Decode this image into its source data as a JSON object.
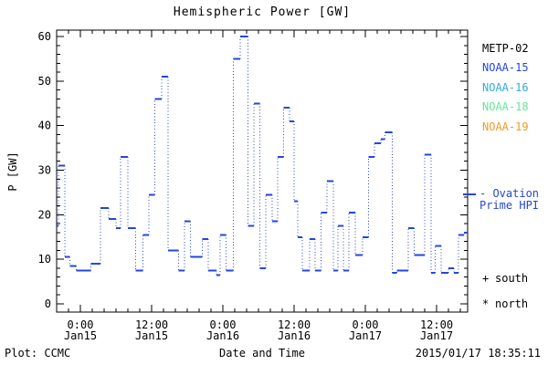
{
  "footer": {
    "left": "Plot: CCMC",
    "right": "2015/01/17 18:35:11"
  },
  "legend": {
    "satellites": [
      {
        "label": "METP-02",
        "color": "#000000"
      },
      {
        "label": "NOAA-15",
        "color": "#2547d8"
      },
      {
        "label": "NOAA-16",
        "color": "#33aadd"
      },
      {
        "label": "NOAA-18",
        "color": "#66e699"
      },
      {
        "label": "NOAA-19",
        "color": "#ef9c28"
      }
    ],
    "ovation": {
      "line1": "- Ovation",
      "line2": "Prime HPI",
      "color": "#2547d8"
    },
    "markers": [
      {
        "symbol": "+",
        "label": "south"
      },
      {
        "symbol": "*",
        "label": "north"
      }
    ]
  },
  "chart_data": {
    "type": "line",
    "subtype": "step-dashes-with-dotted-connectors",
    "title": "Hemispheric Power [GW]",
    "xlabel": "Date and Time",
    "ylabel": "P [GW]",
    "ylim": [
      0,
      61.4
    ],
    "grid": false,
    "y_major_ticks": [
      0,
      10,
      20,
      30,
      40,
      50,
      60
    ],
    "y_minor_step": 2,
    "x_axis_start": "2015-01-14 20:00",
    "x_axis_span_hours": 69.2,
    "x_minor_step_hours": 2,
    "x_major_ticks": [
      {
        "hours": 4,
        "label_time": "0:00",
        "label_date": "Jan15"
      },
      {
        "hours": 16,
        "label_time": "12:00",
        "label_date": "Jan15"
      },
      {
        "hours": 28,
        "label_time": "0:00",
        "label_date": "Jan16"
      },
      {
        "hours": 40,
        "label_time": "12:00",
        "label_date": "Jan16"
      },
      {
        "hours": 52,
        "label_time": "0:00",
        "label_date": "Jan17"
      },
      {
        "hours": 64,
        "label_time": "12:00",
        "label_date": "Jan17"
      }
    ],
    "series": [
      {
        "name": "NOAA-15 Ovation Prime HPI",
        "color": "#2547d8",
        "units": "GW",
        "steps_t0_t1_value": [
          [
            0.0,
            0.3,
            17.5
          ],
          [
            0.3,
            1.4,
            31
          ],
          [
            1.4,
            2.2,
            10.5
          ],
          [
            2.2,
            3.3,
            8.5
          ],
          [
            3.3,
            5.8,
            7.5
          ],
          [
            5.8,
            7.4,
            9
          ],
          [
            7.4,
            8.8,
            21.5
          ],
          [
            8.8,
            10.0,
            19
          ],
          [
            10.0,
            10.8,
            17
          ],
          [
            10.8,
            12.0,
            33
          ],
          [
            12.0,
            13.3,
            17
          ],
          [
            13.3,
            14.5,
            7.5
          ],
          [
            14.5,
            15.5,
            15.5
          ],
          [
            15.5,
            16.5,
            24.5
          ],
          [
            16.5,
            17.7,
            46
          ],
          [
            17.7,
            18.8,
            51
          ],
          [
            18.8,
            20.5,
            12
          ],
          [
            20.5,
            21.5,
            7.5
          ],
          [
            21.5,
            22.5,
            18.5
          ],
          [
            22.5,
            24.5,
            10.5
          ],
          [
            24.5,
            25.5,
            14.5
          ],
          [
            25.5,
            26.9,
            7.5
          ],
          [
            26.9,
            27.5,
            6.5
          ],
          [
            27.5,
            28.5,
            15.5
          ],
          [
            28.5,
            29.8,
            7.5
          ],
          [
            29.8,
            30.9,
            55
          ],
          [
            30.9,
            32.2,
            60
          ],
          [
            32.2,
            33.2,
            17.5
          ],
          [
            33.2,
            34.2,
            45
          ],
          [
            34.2,
            35.2,
            8
          ],
          [
            35.2,
            36.3,
            24.5
          ],
          [
            36.3,
            37.2,
            18.5
          ],
          [
            37.2,
            38.2,
            33
          ],
          [
            38.2,
            39.2,
            44
          ],
          [
            39.2,
            40.0,
            41
          ],
          [
            40.0,
            40.6,
            23
          ],
          [
            40.6,
            41.4,
            15
          ],
          [
            41.4,
            42.6,
            7.5
          ],
          [
            42.6,
            43.5,
            14.5
          ],
          [
            43.5,
            44.5,
            7.5
          ],
          [
            44.5,
            45.5,
            20.5
          ],
          [
            45.5,
            46.6,
            27.5
          ],
          [
            46.6,
            47.4,
            7.5
          ],
          [
            47.4,
            48.3,
            17.5
          ],
          [
            48.3,
            49.2,
            7.5
          ],
          [
            49.2,
            50.3,
            20.5
          ],
          [
            50.3,
            51.5,
            11
          ],
          [
            51.5,
            52.5,
            15
          ],
          [
            52.5,
            53.5,
            33
          ],
          [
            53.5,
            54.6,
            36
          ],
          [
            54.6,
            55.3,
            37
          ],
          [
            55.3,
            56.5,
            38.5
          ],
          [
            56.5,
            57.3,
            7
          ],
          [
            57.3,
            59.2,
            7.5
          ],
          [
            59.2,
            60.2,
            17
          ],
          [
            60.2,
            62.0,
            11
          ],
          [
            62.0,
            63.1,
            33.5
          ],
          [
            63.1,
            63.8,
            7
          ],
          [
            63.8,
            64.8,
            13
          ],
          [
            64.8,
            66.0,
            7
          ],
          [
            66.0,
            66.9,
            8
          ],
          [
            66.9,
            67.7,
            7
          ],
          [
            67.7,
            68.6,
            15.5
          ],
          [
            68.6,
            69.2,
            16
          ]
        ]
      }
    ]
  }
}
